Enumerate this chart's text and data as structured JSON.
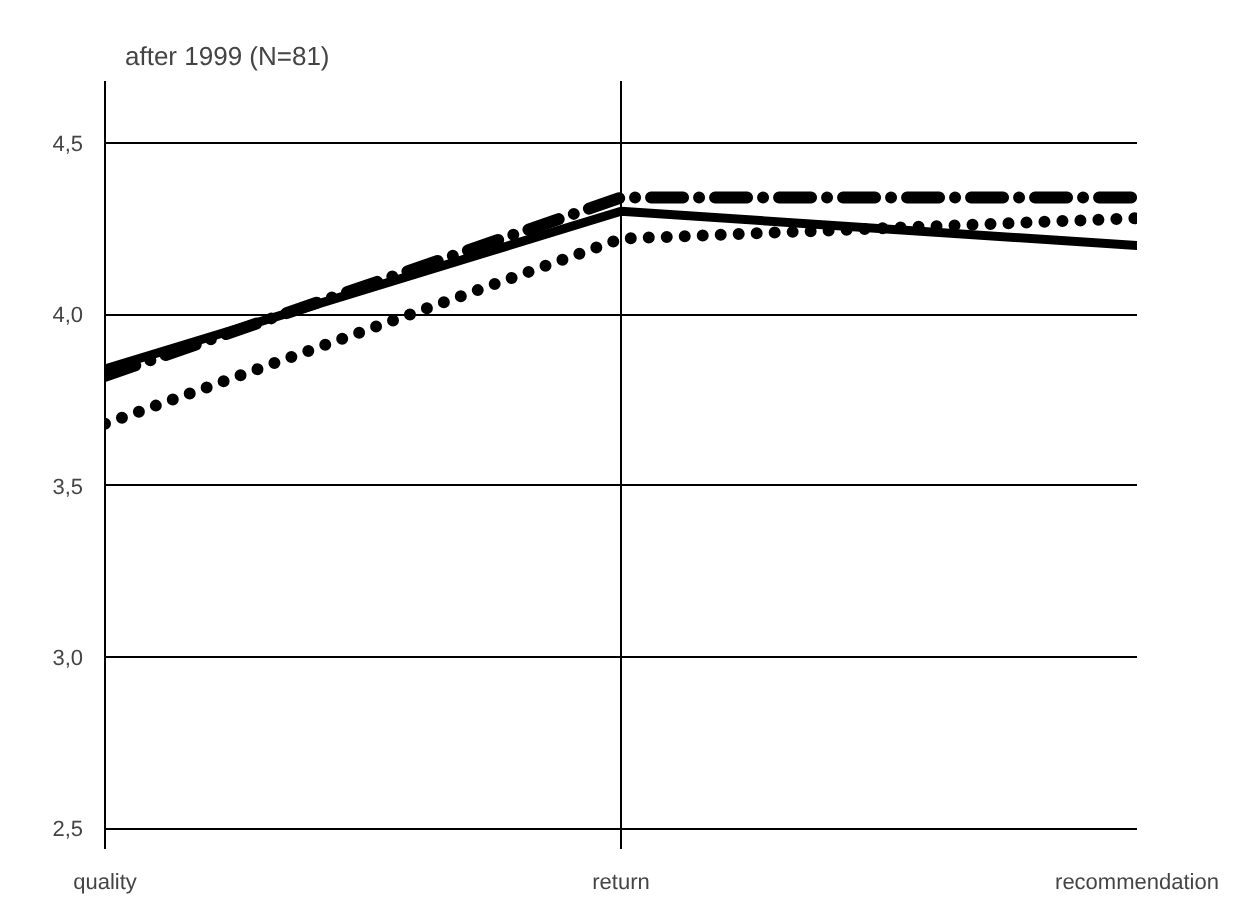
{
  "chart_data": {
    "type": "line",
    "title": "after 1999 (N=81)",
    "categories": [
      "quality",
      "return",
      "recommendation"
    ],
    "series": [
      {
        "color": "#000000",
        "line_style": "solid",
        "values": [
          3.84,
          4.3,
          4.2
        ]
      },
      {
        "color": "#000000",
        "line_style": "dotted",
        "values": [
          3.68,
          4.22,
          4.28
        ]
      },
      {
        "color": "#000000",
        "line_style": "dashdot",
        "values": [
          3.82,
          4.34,
          4.34
        ]
      }
    ],
    "ylim": [
      2.44,
      4.68
    ],
    "yticks": [
      {
        "value": 2.5,
        "label": "2,5"
      },
      {
        "value": 3.0,
        "label": "3,0"
      },
      {
        "value": 3.5,
        "label": "3,5"
      },
      {
        "value": 4.0,
        "label": "4,0"
      },
      {
        "value": 4.5,
        "label": "4,5"
      }
    ],
    "grid": true,
    "marker": "none"
  }
}
